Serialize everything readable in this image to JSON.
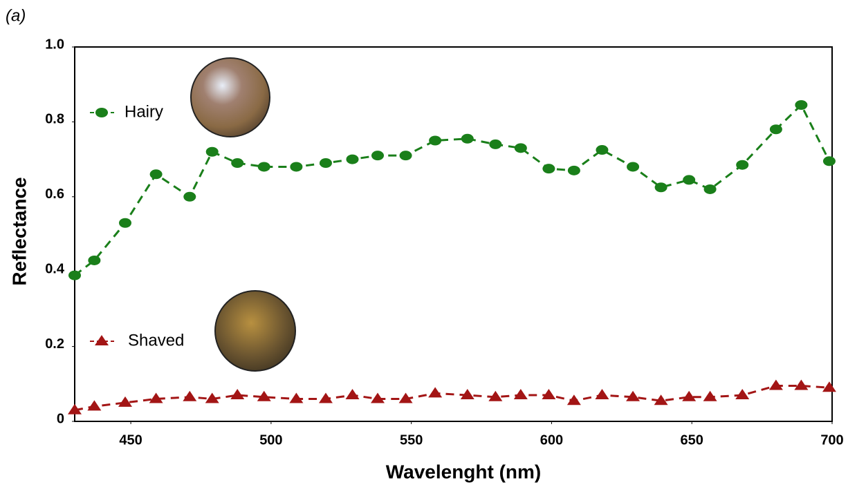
{
  "panel_label": "(a)",
  "chart_data": {
    "type": "line",
    "xlabel": "Wavelenght (nm)",
    "ylabel": "Reflectance",
    "x": [
      430,
      437,
      448,
      459,
      471,
      479,
      488,
      497.5,
      509,
      519.5,
      529,
      538,
      548,
      558.5,
      570,
      580,
      589,
      599,
      608,
      618,
      629,
      639,
      649,
      656.5,
      668,
      680,
      689,
      699
    ],
    "series": [
      {
        "name": "Hairy",
        "color": "#1a7f1a",
        "marker": "circle",
        "values": [
          0.39,
          0.43,
          0.53,
          0.66,
          0.6,
          0.72,
          0.69,
          0.68,
          0.68,
          0.69,
          0.7,
          0.71,
          0.71,
          0.75,
          0.755,
          0.74,
          0.73,
          0.675,
          0.67,
          0.725,
          0.68,
          0.625,
          0.645,
          0.62,
          0.685,
          0.78,
          0.845,
          0.695
        ]
      },
      {
        "name": "Shaved",
        "color": "#a31515",
        "marker": "triangle",
        "values": [
          0.03,
          0.04,
          0.05,
          0.06,
          0.065,
          0.06,
          0.07,
          0.065,
          0.06,
          0.06,
          0.07,
          0.06,
          0.06,
          0.075,
          0.07,
          0.065,
          0.07,
          0.07,
          0.055,
          0.07,
          0.065,
          0.055,
          0.065,
          0.065,
          0.07,
          0.095,
          0.095,
          0.09
        ]
      }
    ],
    "xlim": [
      430,
      700
    ],
    "xticks": [
      450,
      500,
      550,
      600,
      650,
      700
    ],
    "ylim": [
      0,
      1
    ],
    "yticks": [
      0,
      0.2,
      0.4,
      0.6,
      0.8,
      {
        "value": 1,
        "label": "1.0"
      }
    ],
    "grid": false
  }
}
